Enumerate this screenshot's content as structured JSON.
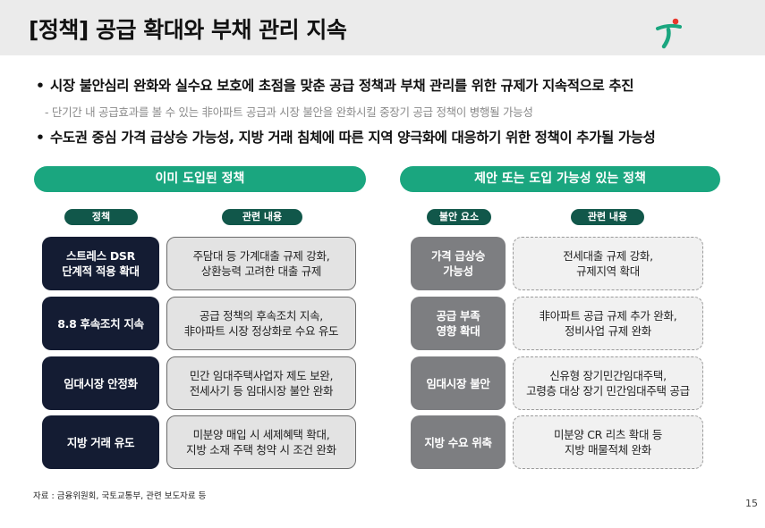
{
  "header": {
    "title": "[정책] 공급 확대와 부채 관리 지속"
  },
  "bullets": [
    {
      "text": "시장 불안심리 완화와 실수요 보호에 초점을 맞춘 공급 정책과 부채 관리를 위한 규제가 지속적으로 추진"
    },
    {
      "text": "수도권 중심 가격 급상승 가능성, 지방 거래 침체에 따른 지역 양극화에 대응하기 위한 정책이 추가될 가능성"
    }
  ],
  "bullet_marker": "•",
  "sub_note": "- 단기간 내 공급효과를 볼 수 있는 非아파트 공급과 시장 불안을 완화시킬 중장기 공급 정책이 병행될 가능성",
  "left_panel": {
    "header": "이미 도입된 정책",
    "col1": "정책",
    "col2": "관련 내용",
    "rows": [
      {
        "name": "스트레스 DSR\n단계적 적용 확대",
        "detail": "주담대 등 가계대출 규제 강화,\n상환능력 고려한 대출 규제"
      },
      {
        "name": "8.8 후속조치 지속",
        "detail": "공급 정책의 후속조치 지속,\n非아파트 시장 정상화로 수요 유도"
      },
      {
        "name": "임대시장 안정화",
        "detail": "민간 임대주택사업자 제도 보완,\n전세사기 등 임대시장 불안 완화"
      },
      {
        "name": "지방 거래 유도",
        "detail": "미분양 매입 시 세제혜택 확대,\n지방 소재 주택 청약 시 조건 완화"
      }
    ]
  },
  "right_panel": {
    "header": "제안 또는 도입 가능성 있는 정책",
    "col1": "불안 요소",
    "col2": "관련 내용",
    "rows": [
      {
        "name": "가격 급상승\n가능성",
        "detail": "전세대출 규제 강화,\n규제지역 확대"
      },
      {
        "name": "공급 부족\n영향 확대",
        "detail": "非아파트 공급 규제 추가 완화,\n정비사업 규제 완화"
      },
      {
        "name": "임대시장 불안",
        "detail": "신유형 장기민간임대주택,\n고령층 대상 장기 민간임대주택 공급"
      },
      {
        "name": "지방 수요 위축",
        "detail": "미분양 CR 리츠 확대 등\n지방 매물적체 완화"
      }
    ]
  },
  "footer": {
    "source": "자료 : 금융위원회, 국토교통부, 관련 보도자료 등",
    "page": "15"
  },
  "colors": {
    "accent_green": "#1aa67f",
    "dark_green": "#11574a",
    "navy": "#141c33",
    "grey": "#7d7e81",
    "logo_red": "#e8362b"
  },
  "icons": {
    "logo": "hana-logo-icon"
  }
}
